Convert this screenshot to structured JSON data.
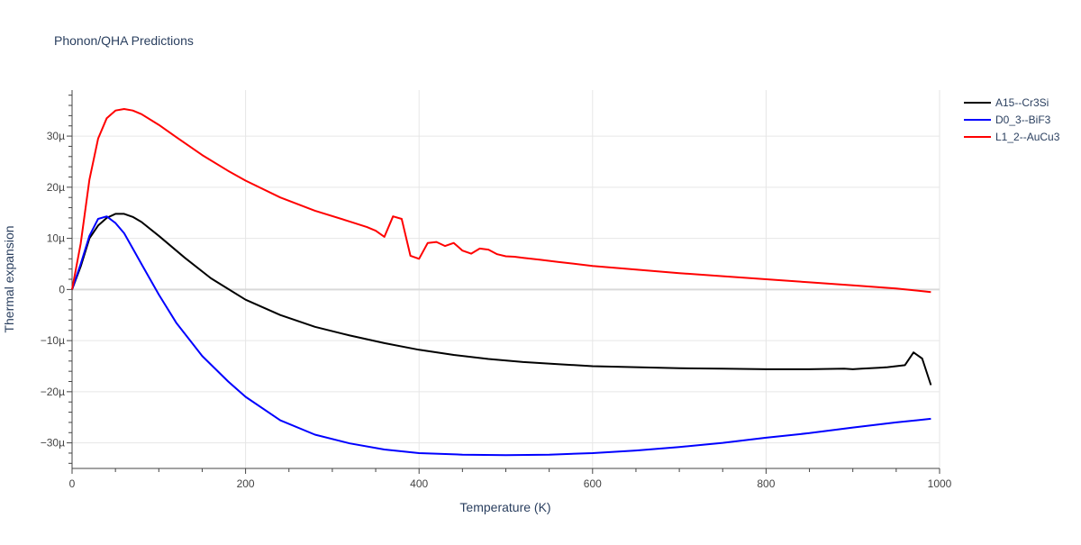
{
  "chart_data": {
    "type": "line",
    "title": "Phonon/QHA Predictions",
    "xlabel": "Temperature (K)",
    "ylabel": "Thermal expansion",
    "xlim": [
      0,
      1000
    ],
    "ylim": [
      -35,
      39
    ],
    "x_ticks": [
      0,
      200,
      400,
      600,
      800,
      1000
    ],
    "x_tick_labels": [
      "0",
      "200",
      "400",
      "600",
      "800",
      "1000"
    ],
    "y_ticks": [
      -30,
      -20,
      -10,
      0,
      10,
      20,
      30
    ],
    "y_tick_labels": [
      "−30µ",
      "−20µ",
      "−10µ",
      "0",
      "10µ",
      "20µ",
      "30µ"
    ],
    "grid": true,
    "legend_position": "top-right",
    "series": [
      {
        "name": "A15--Cr3Si",
        "color": "#000000",
        "x": [
          0,
          10,
          20,
          30,
          40,
          50,
          60,
          70,
          80,
          100,
          130,
          160,
          200,
          240,
          280,
          320,
          360,
          400,
          440,
          480,
          520,
          560,
          600,
          650,
          700,
          750,
          800,
          850,
          890,
          900,
          910,
          920,
          930,
          940,
          950,
          960,
          970,
          980,
          990
        ],
        "y": [
          0,
          4.5,
          10,
          12.5,
          14,
          14.8,
          14.8,
          14.2,
          13.2,
          10.5,
          6.2,
          2.2,
          -2.0,
          -5.0,
          -7.3,
          -9.0,
          -10.5,
          -11.8,
          -12.8,
          -13.6,
          -14.2,
          -14.6,
          -15.0,
          -15.2,
          -15.4,
          -15.5,
          -15.6,
          -15.6,
          -15.5,
          -15.6,
          -15.5,
          -15.4,
          -15.3,
          -15.2,
          -15.0,
          -14.8,
          -12.3,
          -13.5,
          -18.7
        ]
      },
      {
        "name": "D0_3--BiF3",
        "color": "#0000ff",
        "x": [
          0,
          10,
          20,
          30,
          40,
          50,
          60,
          70,
          80,
          100,
          120,
          150,
          180,
          200,
          240,
          280,
          320,
          360,
          400,
          450,
          500,
          550,
          600,
          650,
          700,
          750,
          800,
          850,
          900,
          950,
          990
        ],
        "y": [
          0,
          5.0,
          10.5,
          13.8,
          14.3,
          13.0,
          11.0,
          8.0,
          5.0,
          -1.0,
          -6.5,
          -13.0,
          -18.0,
          -21.0,
          -25.6,
          -28.4,
          -30.1,
          -31.3,
          -32.0,
          -32.3,
          -32.4,
          -32.3,
          -32.0,
          -31.5,
          -30.8,
          -30.0,
          -29.0,
          -28.1,
          -27.0,
          -26.0,
          -25.3
        ]
      },
      {
        "name": "L1_2--AuCu3",
        "color": "#ff0000",
        "x": [
          0,
          10,
          20,
          30,
          40,
          50,
          60,
          70,
          80,
          100,
          120,
          150,
          180,
          200,
          240,
          280,
          320,
          340,
          350,
          360,
          370,
          380,
          390,
          400,
          410,
          420,
          430,
          440,
          450,
          460,
          470,
          480,
          490,
          500,
          510,
          520,
          540,
          560,
          600,
          650,
          700,
          750,
          800,
          850,
          900,
          950,
          990
        ],
        "y": [
          0,
          9.0,
          21.5,
          29.5,
          33.5,
          35.0,
          35.3,
          35.0,
          34.3,
          32.2,
          29.8,
          26.3,
          23.2,
          21.3,
          18.0,
          15.4,
          13.3,
          12.2,
          11.5,
          10.3,
          14.3,
          13.8,
          6.6,
          6.0,
          9.1,
          9.3,
          8.5,
          9.1,
          7.6,
          7.0,
          8.0,
          7.8,
          6.9,
          6.5,
          6.4,
          6.2,
          5.8,
          5.4,
          4.6,
          3.9,
          3.2,
          2.6,
          2.0,
          1.4,
          0.8,
          0.2,
          -0.5
        ]
      }
    ]
  }
}
